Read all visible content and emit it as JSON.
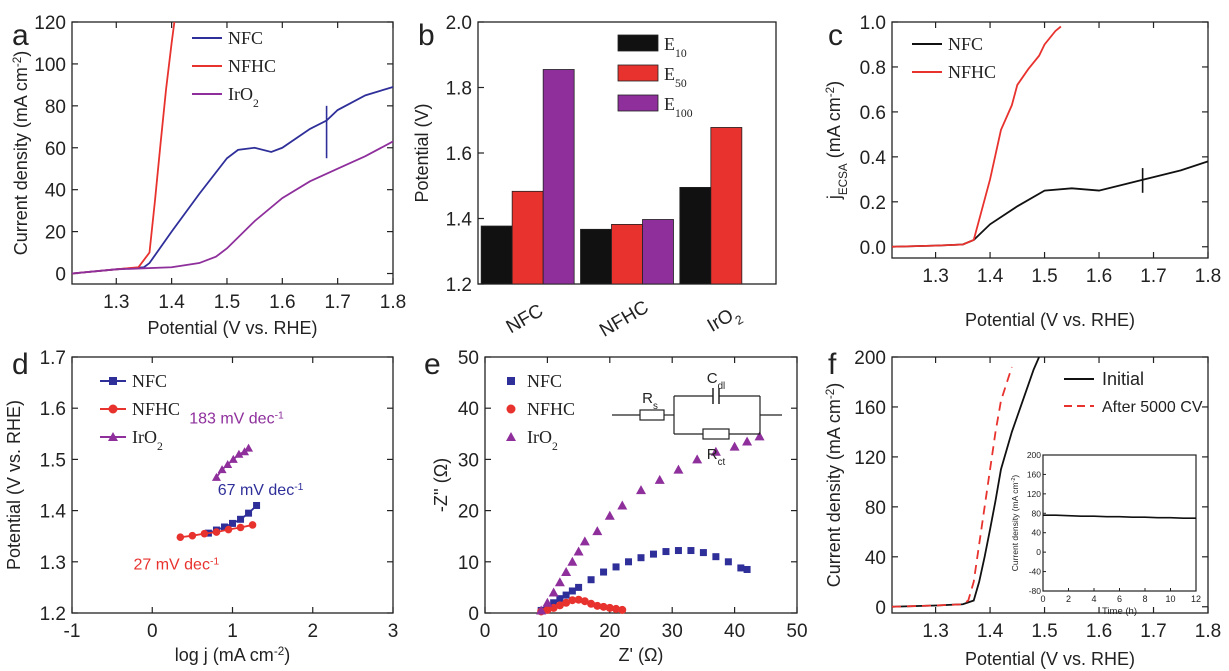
{
  "colors": {
    "nfc": "#2f2f9a",
    "nfhc": "#e8322e",
    "iro2": "#8e2f9c",
    "black": "#111111",
    "e10": "#111111",
    "e50": "#e8322e",
    "e100": "#8e2f9c"
  },
  "chart_data": [
    {
      "panel": "a",
      "type": "line",
      "xlabel": "Potential (V vs. RHE)",
      "ylabel": "Current density (mA cm-2)",
      "xlim": [
        1.22,
        1.8
      ],
      "ylim": [
        -5,
        120
      ],
      "xticks": [
        "1.3",
        "1.4",
        "1.5",
        "1.6",
        "1.7",
        "1.8"
      ],
      "yticks": [
        "0",
        "20",
        "40",
        "60",
        "80",
        "100",
        "120"
      ],
      "legend": [
        "NFC",
        "NFHC",
        "IrO2"
      ],
      "legend_position": "top-left",
      "series": [
        {
          "name": "NFC",
          "x": [
            1.22,
            1.3,
            1.35,
            1.36,
            1.4,
            1.45,
            1.5,
            1.52,
            1.55,
            1.58,
            1.6,
            1.65,
            1.68,
            1.7,
            1.75,
            1.8
          ],
          "y": [
            0,
            2,
            3,
            5,
            20,
            38,
            55,
            59,
            60,
            58,
            60,
            69,
            73,
            78,
            85,
            89
          ]
        },
        {
          "name": "NFHC",
          "x": [
            1.22,
            1.3,
            1.34,
            1.36,
            1.37,
            1.38,
            1.39,
            1.4,
            1.405
          ],
          "y": [
            0,
            2,
            3,
            10,
            35,
            62,
            88,
            110,
            120
          ]
        },
        {
          "name": "IrO2",
          "x": [
            1.22,
            1.3,
            1.4,
            1.45,
            1.48,
            1.5,
            1.55,
            1.6,
            1.65,
            1.7,
            1.75,
            1.8
          ],
          "y": [
            0,
            2,
            3,
            5,
            8,
            12,
            25,
            36,
            44,
            50,
            56,
            63
          ]
        }
      ]
    },
    {
      "panel": "b",
      "type": "bar",
      "ylabel": "Potential (V)",
      "ylim": [
        1.2,
        2.0
      ],
      "yticks": [
        "1.2",
        "1.4",
        "1.6",
        "1.8",
        "2.0"
      ],
      "categories": [
        "NFC",
        "NFHC",
        "IrO2"
      ],
      "legend": [
        "E10",
        "E50",
        "E100"
      ],
      "legend_position": "top-center",
      "series": [
        {
          "name": "E10",
          "values": [
            1.377,
            1.367,
            1.495
          ]
        },
        {
          "name": "E50",
          "values": [
            1.483,
            1.382,
            1.678
          ]
        },
        {
          "name": "E100",
          "values": [
            1.855,
            1.397,
            null
          ]
        }
      ]
    },
    {
      "panel": "c",
      "type": "line",
      "xlabel": "Potential (V vs. RHE)",
      "ylabel": "jECSA (mA cm-2)",
      "xlim": [
        1.22,
        1.8
      ],
      "ylim": [
        -0.05,
        1.0
      ],
      "xticks": [
        "1.3",
        "1.4",
        "1.5",
        "1.6",
        "1.7",
        "1.8"
      ],
      "yticks": [
        "0.0",
        "0.2",
        "0.4",
        "0.6",
        "0.8",
        "1.0"
      ],
      "legend": [
        "NFC",
        "NFHC"
      ],
      "legend_position": "top-left",
      "series": [
        {
          "name": "NFC",
          "x": [
            1.22,
            1.3,
            1.35,
            1.37,
            1.4,
            1.45,
            1.5,
            1.55,
            1.6,
            1.65,
            1.7,
            1.75,
            1.8
          ],
          "y": [
            0,
            0.005,
            0.01,
            0.03,
            0.1,
            0.18,
            0.25,
            0.26,
            0.25,
            0.28,
            0.31,
            0.34,
            0.38
          ]
        },
        {
          "name": "NFHC",
          "x": [
            1.22,
            1.3,
            1.35,
            1.37,
            1.4,
            1.42,
            1.44,
            1.45,
            1.47,
            1.49,
            1.5,
            1.52,
            1.53
          ],
          "y": [
            0,
            0.005,
            0.01,
            0.03,
            0.3,
            0.52,
            0.63,
            0.72,
            0.79,
            0.85,
            0.9,
            0.96,
            0.98
          ]
        }
      ]
    },
    {
      "panel": "d",
      "type": "scatter",
      "xlabel": "log j (mA cm-2)",
      "ylabel": "Potential (V vs. RHE)",
      "xlim": [
        -1,
        3
      ],
      "ylim": [
        1.2,
        1.7
      ],
      "xticks": [
        "-1",
        "0",
        "1",
        "2",
        "3"
      ],
      "yticks": [
        "1.2",
        "1.3",
        "1.4",
        "1.5",
        "1.6",
        "1.7"
      ],
      "legend": [
        "NFC",
        "NFHC",
        "IrO2"
      ],
      "legend_position": "top-left",
      "annotations": [
        "183 mV dec-1",
        "67 mV dec-1",
        "27 mV dec-1"
      ],
      "series": [
        {
          "name": "NFC",
          "x": [
            0.7,
            0.8,
            0.9,
            1.0,
            1.1,
            1.2,
            1.3
          ],
          "y": [
            1.356,
            1.362,
            1.368,
            1.375,
            1.383,
            1.395,
            1.41
          ]
        },
        {
          "name": "NFHC",
          "x": [
            0.35,
            0.5,
            0.65,
            0.8,
            0.95,
            1.1,
            1.25
          ],
          "y": [
            1.348,
            1.351,
            1.355,
            1.358,
            1.363,
            1.367,
            1.372
          ]
        },
        {
          "name": "IrO2",
          "x": [
            0.8,
            0.87,
            0.94,
            1.01,
            1.08,
            1.15,
            1.2
          ],
          "y": [
            1.465,
            1.48,
            1.49,
            1.5,
            1.51,
            1.515,
            1.522
          ]
        }
      ]
    },
    {
      "panel": "e",
      "type": "scatter",
      "xlabel": "Z' (Ω)",
      "ylabel": "-Z'' (Ω)",
      "xlim": [
        0,
        50
      ],
      "ylim": [
        0,
        50
      ],
      "xticks": [
        "0",
        "10",
        "20",
        "30",
        "40",
        "50"
      ],
      "yticks": [
        "0",
        "10",
        "20",
        "30",
        "40",
        "50"
      ],
      "legend": [
        "NFC",
        "NFHC",
        "IrO2"
      ],
      "legend_position": "top-left",
      "inset_labels": [
        "Rs",
        "Cdl",
        "Rct"
      ],
      "series": [
        {
          "name": "NFC",
          "x": [
            9,
            10,
            11,
            12,
            13,
            14,
            15,
            17,
            19,
            21,
            23,
            25,
            27,
            29,
            31,
            33,
            35,
            37,
            39,
            41,
            42
          ],
          "y": [
            0.5,
            1,
            2,
            2.8,
            3.5,
            4.3,
            5,
            6.5,
            8,
            9,
            10,
            10.8,
            11.5,
            12,
            12.2,
            12.2,
            11.8,
            11,
            10,
            8.8,
            8.5
          ]
        },
        {
          "name": "NFHC",
          "x": [
            9,
            10,
            11,
            12,
            13,
            14,
            15,
            16,
            17,
            18,
            19,
            20,
            21,
            22
          ],
          "y": [
            0.3,
            0.6,
            1.0,
            1.5,
            2.0,
            2.5,
            2.6,
            2.3,
            1.8,
            1.4,
            1.2,
            1.0,
            0.8,
            0.6
          ]
        },
        {
          "name": "IrO2",
          "x": [
            9,
            10,
            11,
            12,
            13,
            14,
            15,
            16,
            18,
            20,
            22,
            25,
            28,
            31,
            34,
            37,
            40,
            42,
            44
          ],
          "y": [
            0.5,
            2,
            4,
            6,
            8,
            10,
            12,
            14,
            16,
            19,
            21,
            24,
            26,
            28,
            30,
            31.5,
            32.5,
            33.5,
            34.5
          ]
        }
      ]
    },
    {
      "panel": "f",
      "type": "line",
      "xlabel": "Potential (V vs. RHE)",
      "ylabel": "Current density (mA cm-2)",
      "xlim": [
        1.22,
        1.8
      ],
      "ylim": [
        -5,
        200
      ],
      "xticks": [
        "1.3",
        "1.4",
        "1.5",
        "1.6",
        "1.7",
        "1.8"
      ],
      "yticks": [
        "0",
        "40",
        "80",
        "120",
        "160",
        "200"
      ],
      "legend": [
        "Initial",
        "After 5000 CV"
      ],
      "legend_position": "top-right",
      "series": [
        {
          "name": "Initial",
          "x": [
            1.22,
            1.3,
            1.35,
            1.37,
            1.38,
            1.39,
            1.4,
            1.41,
            1.42,
            1.44,
            1.46,
            1.48,
            1.49
          ],
          "y": [
            0,
            1,
            2,
            5,
            20,
            40,
            62,
            85,
            110,
            140,
            165,
            190,
            200
          ]
        },
        {
          "name": "After 5000 CV",
          "x": [
            1.22,
            1.3,
            1.35,
            1.36,
            1.37,
            1.38,
            1.39,
            1.4,
            1.41,
            1.42,
            1.44
          ],
          "y": [
            0,
            1,
            2,
            5,
            20,
            50,
            80,
            110,
            140,
            165,
            192
          ]
        }
      ],
      "inset": {
        "type": "line",
        "xlabel": "Time (h)",
        "ylabel": "Current density (mA cm-2)",
        "xlim": [
          0,
          12
        ],
        "ylim": [
          -80,
          200
        ],
        "xticks": [
          "0",
          "2",
          "4",
          "6",
          "8",
          "10",
          "12"
        ],
        "yticks": [
          "-80",
          "-40",
          "0",
          "40",
          "80",
          "120",
          "160",
          "200"
        ],
        "x": [
          0,
          1,
          2,
          3,
          4,
          5,
          6,
          7,
          8,
          9,
          10,
          11,
          12
        ],
        "y": [
          76,
          76,
          75,
          74,
          74,
          73,
          73,
          72,
          72,
          71,
          71,
          70,
          70
        ]
      }
    }
  ],
  "panel_letters": [
    "a",
    "b",
    "c",
    "d",
    "e",
    "f"
  ]
}
